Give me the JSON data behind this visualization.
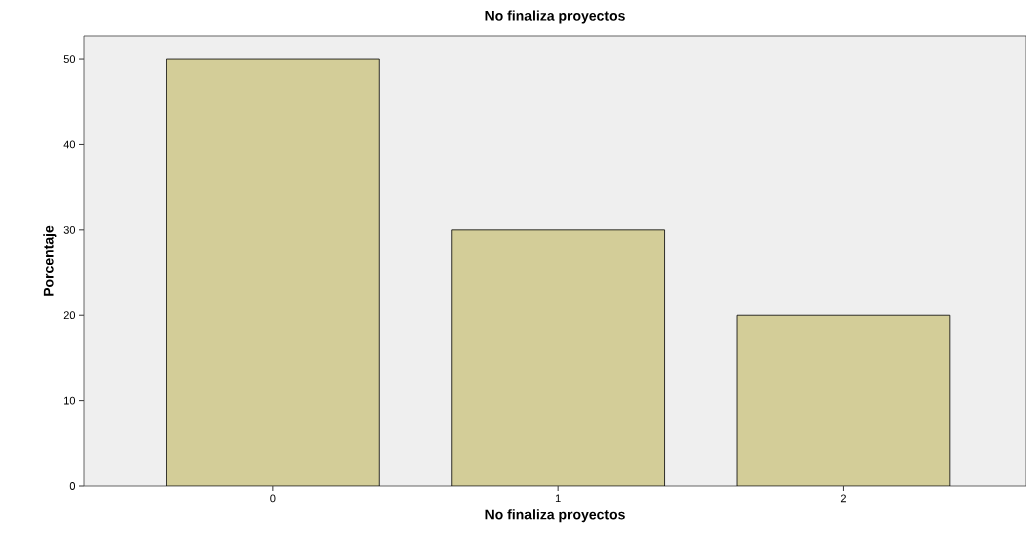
{
  "chart_data": {
    "type": "bar",
    "title": "No finaliza proyectos",
    "xlabel": "No finaliza proyectos",
    "ylabel": "Porcentaje",
    "categories": [
      "0",
      "1",
      "2"
    ],
    "values": [
      50,
      30,
      20
    ],
    "color": "#d3cd98",
    "ylim": [
      0,
      52.7
    ],
    "yticks": [
      0,
      10,
      20,
      30,
      40,
      50
    ]
  }
}
